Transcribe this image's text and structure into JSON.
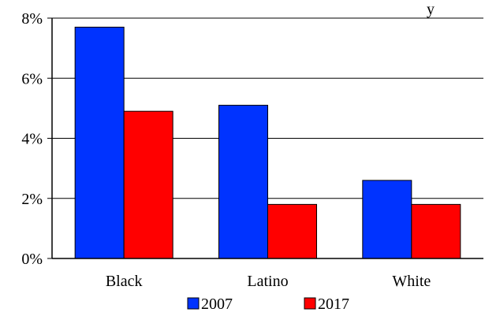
{
  "chart_data": {
    "type": "bar",
    "title": "",
    "title_fragment": "y",
    "xlabel": "",
    "ylabel": "",
    "categories": [
      "Black",
      "Latino",
      "White"
    ],
    "series": [
      {
        "name": "2007",
        "values": [
          7.7,
          5.1,
          2.6
        ],
        "color": "#0033ff"
      },
      {
        "name": "2017",
        "values": [
          4.9,
          1.8,
          1.8
        ],
        "color": "#ff0000"
      }
    ],
    "ylim": [
      0,
      8
    ],
    "yticks": [
      0,
      2,
      4,
      6,
      8
    ],
    "ytick_labels": [
      "0%",
      "2%",
      "4%",
      "6%",
      "8%"
    ],
    "grid": true,
    "legend": "bottom"
  }
}
